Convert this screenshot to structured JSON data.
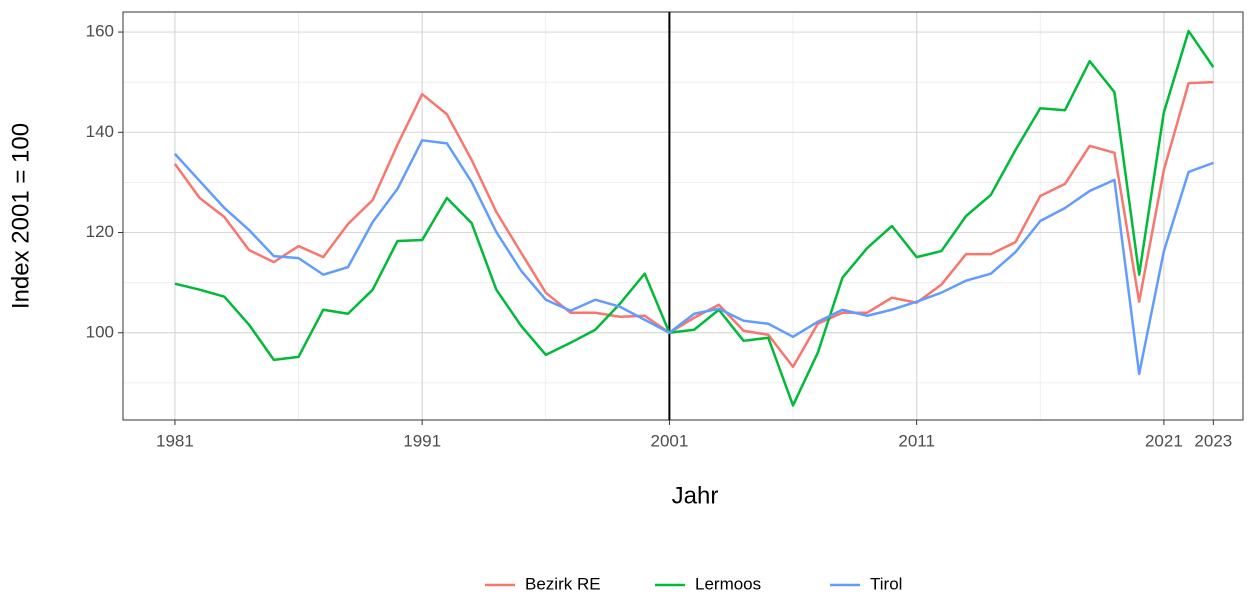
{
  "chart_data": {
    "type": "line",
    "x_label": "Jahr",
    "y_label": "Index 2001 = 100",
    "x": [
      1981,
      1982,
      1983,
      1984,
      1985,
      1986,
      1987,
      1988,
      1989,
      1990,
      1991,
      1992,
      1993,
      1994,
      1995,
      1996,
      1997,
      1998,
      1999,
      2000,
      2001,
      2002,
      2003,
      2004,
      2005,
      2006,
      2007,
      2008,
      2009,
      2010,
      2011,
      2012,
      2013,
      2014,
      2015,
      2016,
      2017,
      2018,
      2019,
      2020,
      2021,
      2022,
      2023
    ],
    "series": [
      {
        "name": "Bezirk RE",
        "color": "#f8766d",
        "values": [
          133.7,
          126.9,
          123.1,
          116.5,
          114.1,
          117.3,
          115.1,
          121.7,
          126.5,
          137.5,
          147.6,
          143.6,
          134.5,
          124.1,
          116,
          108,
          104,
          104,
          103.2,
          103.4,
          100,
          103,
          105.6,
          100.4,
          99.6,
          93.2,
          101.8,
          104,
          104,
          107,
          106,
          109.6,
          115.7,
          115.7,
          118.1,
          127.3,
          129.7,
          137.3,
          135.9,
          106.2,
          132.5,
          149.8,
          150
        ]
      },
      {
        "name": "Lermoos",
        "color": "#00ba38",
        "values": [
          109.8,
          108.6,
          107.2,
          101.6,
          94.6,
          95.2,
          104.6,
          103.8,
          108.6,
          118.3,
          118.5,
          126.9,
          121.9,
          108.6,
          101.4,
          95.6,
          98,
          100.6,
          105.8,
          111.8,
          100,
          100.6,
          104.6,
          98.4,
          99,
          85.5,
          96,
          111,
          116.9,
          121.3,
          115.1,
          116.3,
          123.3,
          127.5,
          136.5,
          144.8,
          144.4,
          154.2,
          148,
          111.6,
          144,
          160.2,
          153
        ]
      },
      {
        "name": "Tirol",
        "color": "#619cff",
        "values": [
          135.7,
          130.3,
          124.9,
          120.5,
          115.3,
          114.9,
          111.6,
          113.1,
          122.1,
          128.7,
          138.4,
          137.8,
          130.1,
          120.1,
          112.4,
          106.6,
          104.4,
          106.6,
          105.2,
          102.6,
          100,
          103.8,
          104.8,
          102.4,
          101.8,
          99.2,
          102.2,
          104.6,
          103.4,
          104.6,
          106.2,
          108,
          110.4,
          111.8,
          116.1,
          122.3,
          124.9,
          128.3,
          130.5,
          91.8,
          116.3,
          132.1,
          133.9
        ]
      }
    ],
    "xlim": [
      1978.9,
      2024.2
    ],
    "ylim": [
      82.6,
      164
    ],
    "xticks": [
      1981,
      1991,
      2001,
      2011,
      2021,
      2023
    ],
    "yticks": [
      100,
      120,
      140,
      160
    ],
    "xminorticks": [
      1986,
      1996,
      2006,
      2016
    ],
    "yminorticks": [
      90,
      110,
      130,
      150
    ],
    "vline": 2001,
    "grid": true,
    "legend": "bottom"
  }
}
